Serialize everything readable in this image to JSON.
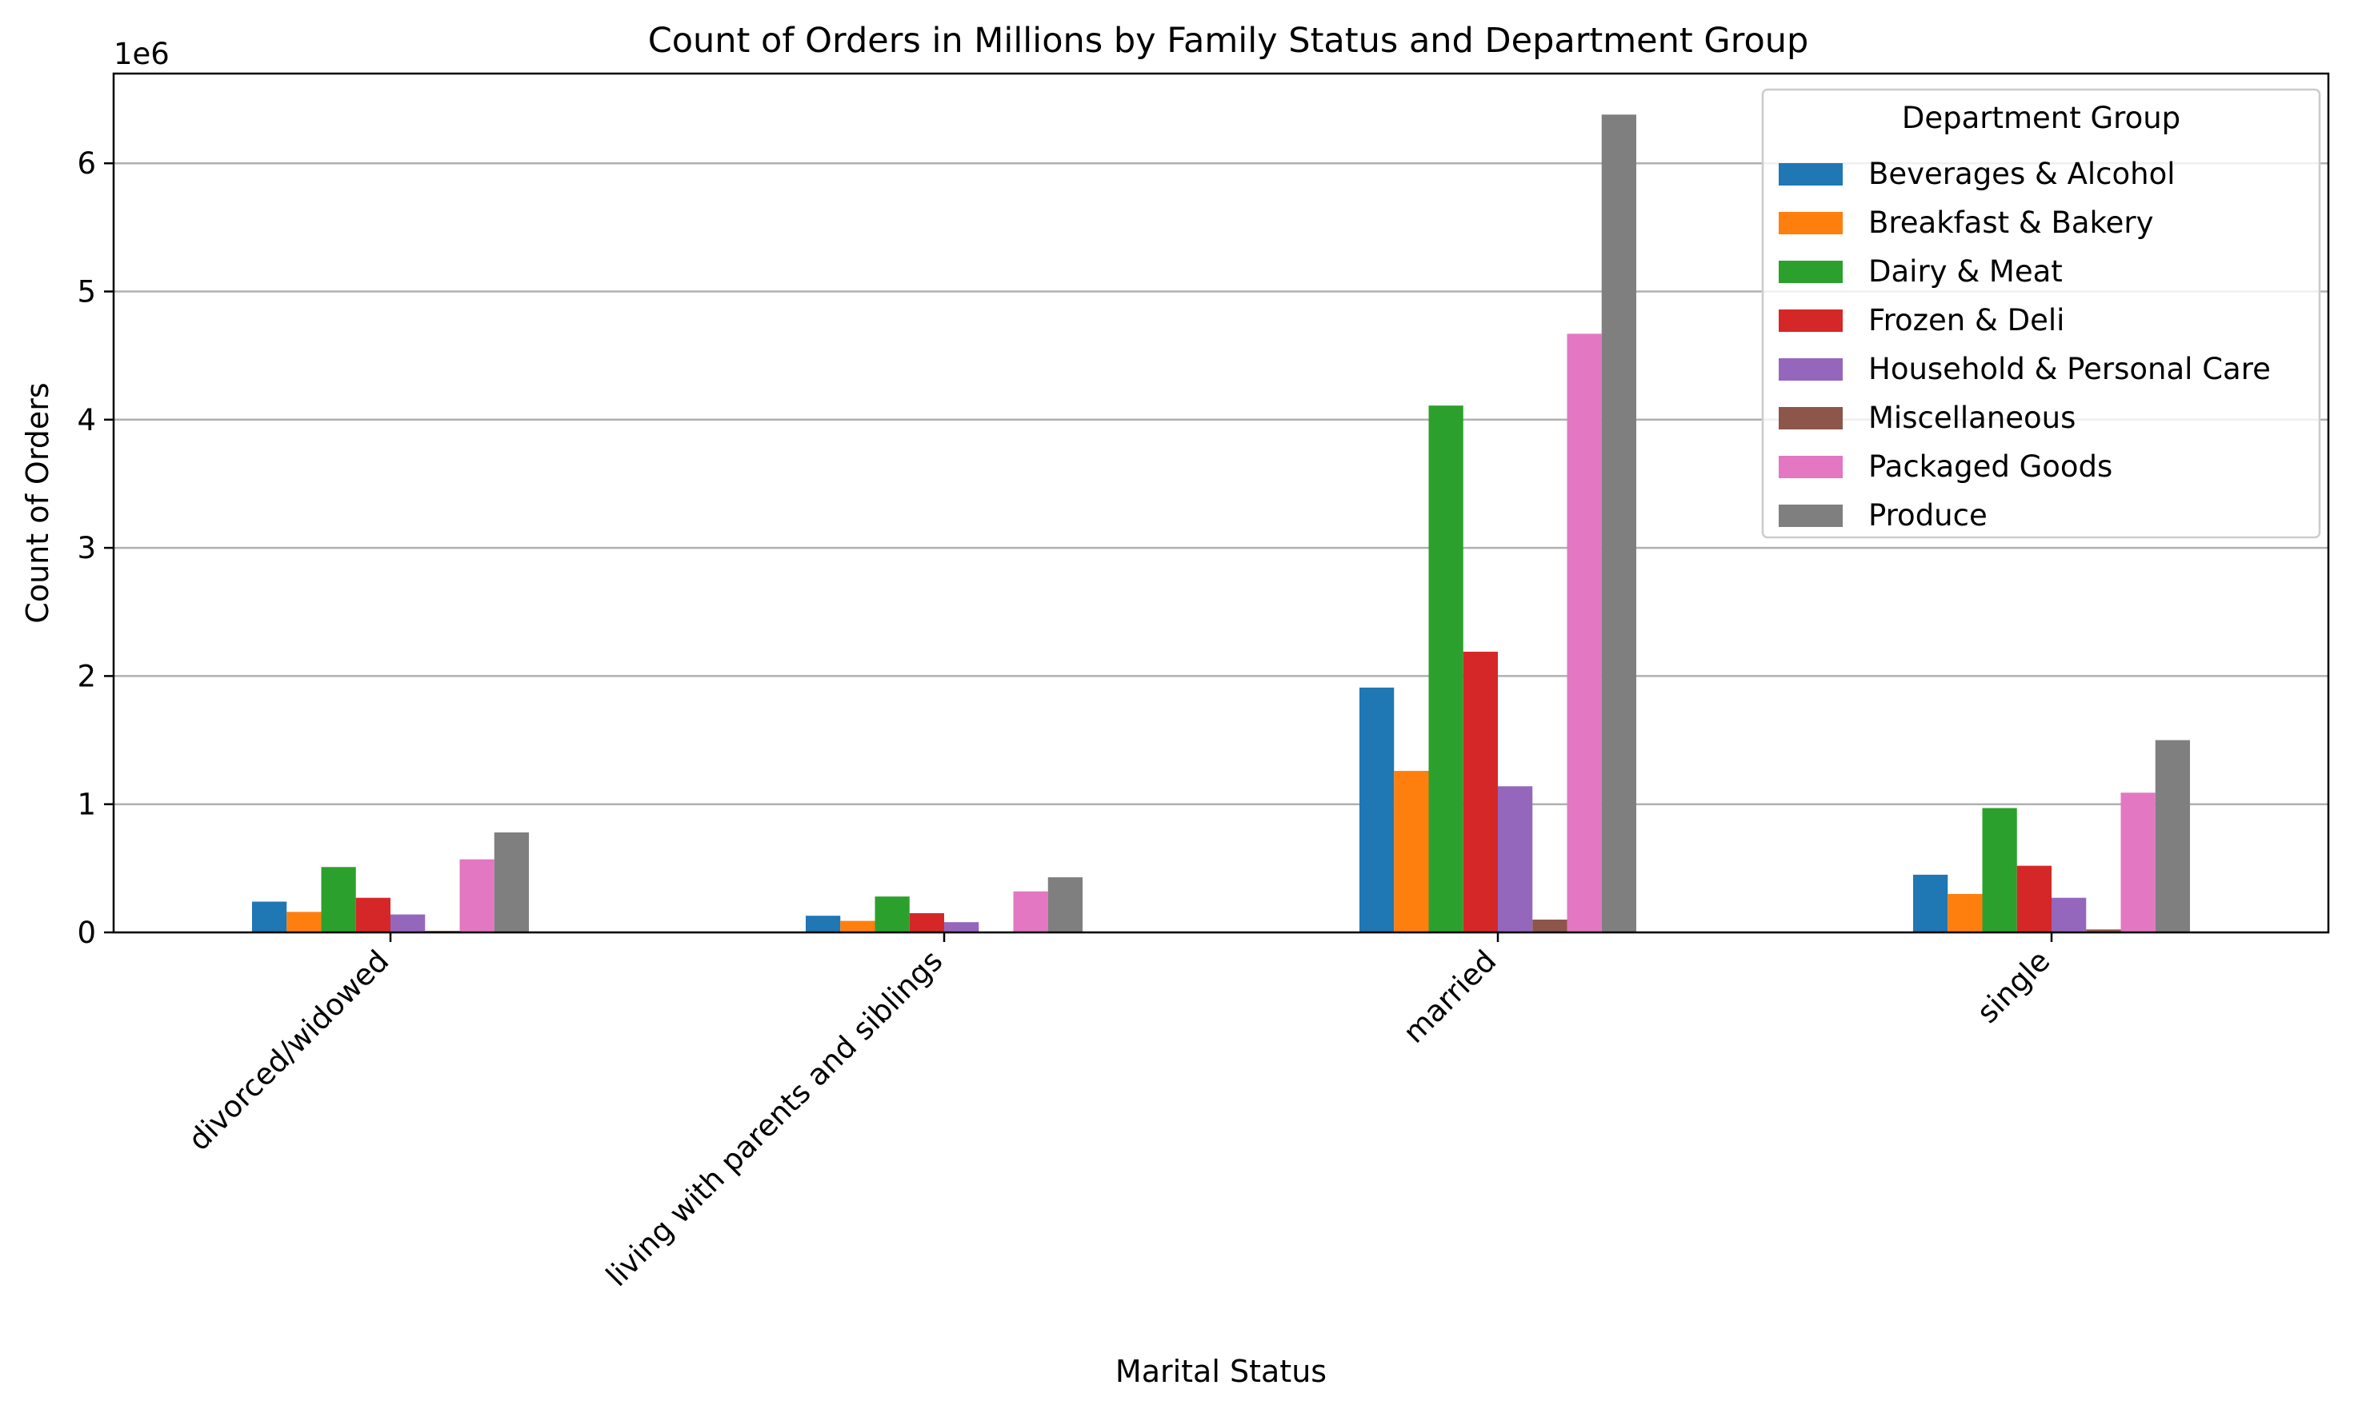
{
  "chart_data": {
    "type": "bar",
    "title": "Count of Orders in Millions by Family Status and Department Group",
    "xlabel": "Marital Status",
    "ylabel": "Count of Orders",
    "y_offset_text": "1e6",
    "ylim": [
      0,
      6700000
    ],
    "yticks": [
      0,
      1000000,
      2000000,
      3000000,
      4000000,
      5000000,
      6000000
    ],
    "ytick_labels": [
      "0",
      "1",
      "2",
      "3",
      "4",
      "5",
      "6"
    ],
    "grid": "y-axis on",
    "legend_title": "Department Group",
    "legend_position": "top-right",
    "categories": [
      "divorced/widowed",
      "living with parents and siblings",
      "married",
      "single"
    ],
    "series": [
      {
        "name": "Beverages & Alcohol",
        "color": "#1f77b4",
        "values": [
          240000,
          130000,
          1910000,
          450000
        ]
      },
      {
        "name": "Breakfast & Bakery",
        "color": "#ff7f0e",
        "values": [
          160000,
          90000,
          1260000,
          300000
        ]
      },
      {
        "name": "Dairy & Meat",
        "color": "#2ca02c",
        "values": [
          510000,
          280000,
          4110000,
          970000
        ]
      },
      {
        "name": "Frozen & Deli",
        "color": "#d62728",
        "values": [
          270000,
          150000,
          2190000,
          520000
        ]
      },
      {
        "name": "Household & Personal Care",
        "color": "#9467bd",
        "values": [
          140000,
          80000,
          1140000,
          270000
        ]
      },
      {
        "name": "Miscellaneous",
        "color": "#8c564b",
        "values": [
          12000,
          6000,
          100000,
          23000
        ]
      },
      {
        "name": "Packaged Goods",
        "color": "#e377c2",
        "values": [
          570000,
          320000,
          4670000,
          1090000
        ]
      },
      {
        "name": "Produce",
        "color": "#7f7f7f",
        "values": [
          780000,
          430000,
          6380000,
          1500000
        ]
      }
    ]
  }
}
